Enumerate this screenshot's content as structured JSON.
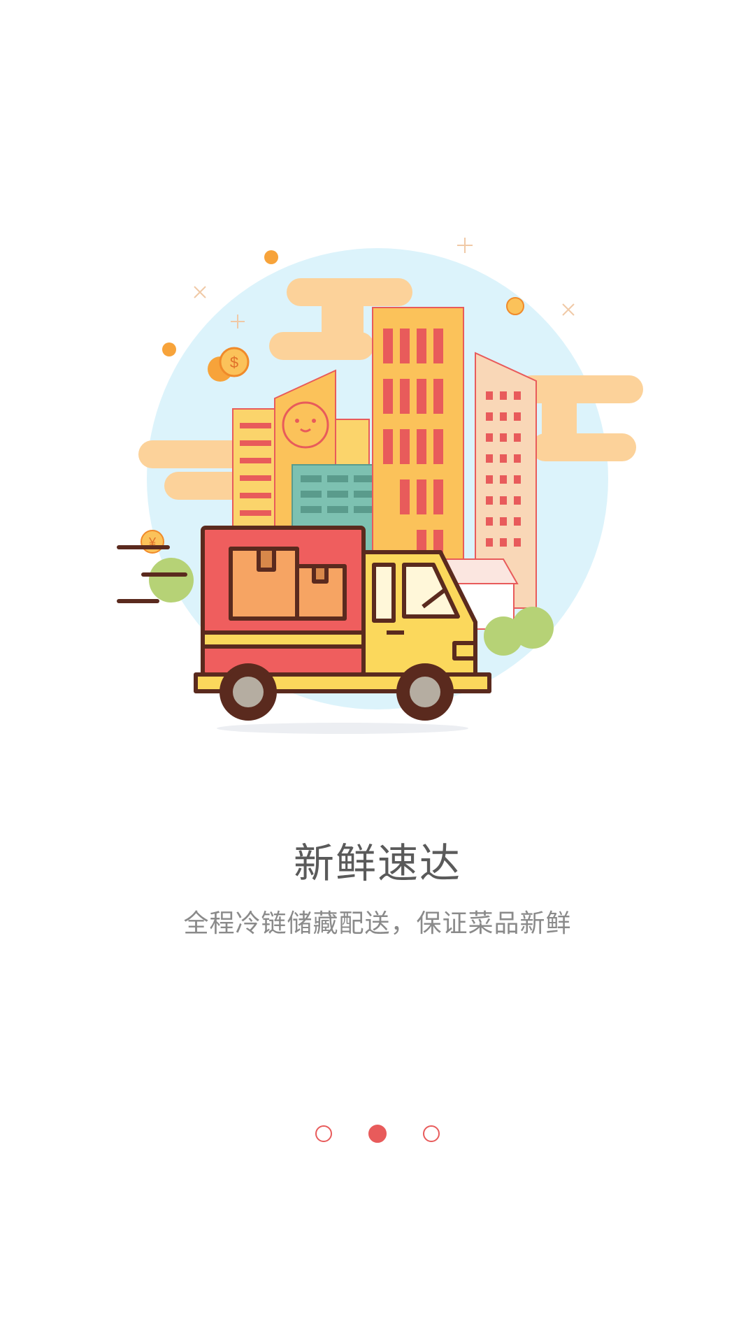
{
  "onboarding": {
    "title": "新鲜速达",
    "subtitle": "全程冷链储藏配送，保证菜品新鲜",
    "illustration_icon": "delivery-truck-city-illustration",
    "pager": {
      "total": 3,
      "active_index": 1
    }
  },
  "colors": {
    "accent": "#e85b5b",
    "title": "#5a5a5a",
    "subtitle": "#8a8a8a",
    "sky": "#dcf3fb",
    "cloud": "#fcd29a"
  }
}
